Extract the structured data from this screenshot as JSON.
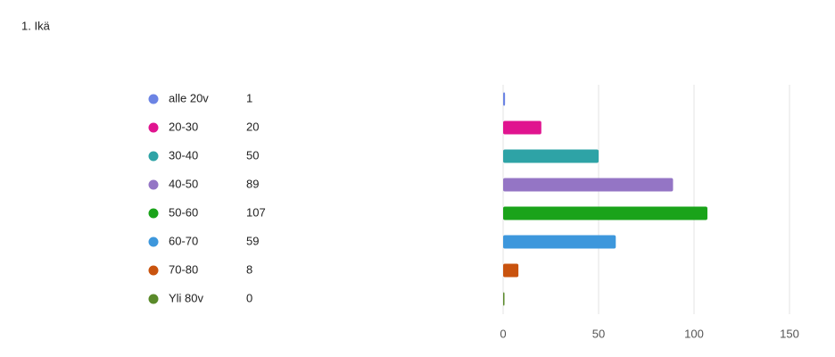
{
  "chart_data": {
    "type": "bar",
    "title": "1. Ikä",
    "categories": [
      "alle 20v",
      "20-30",
      "30-40",
      "40-50",
      "50-60",
      "60-70",
      "70-80",
      "Yli 80v"
    ],
    "values": [
      1,
      20,
      50,
      89,
      107,
      59,
      8,
      0
    ],
    "colors": [
      "#6c84e4",
      "#e0148f",
      "#2ea3a6",
      "#9475c5",
      "#1aa31a",
      "#3d97dc",
      "#c9530e",
      "#5a8a2a"
    ],
    "xlim": [
      0,
      150
    ],
    "xticks": [
      0,
      50,
      100,
      150
    ],
    "grid": true
  }
}
